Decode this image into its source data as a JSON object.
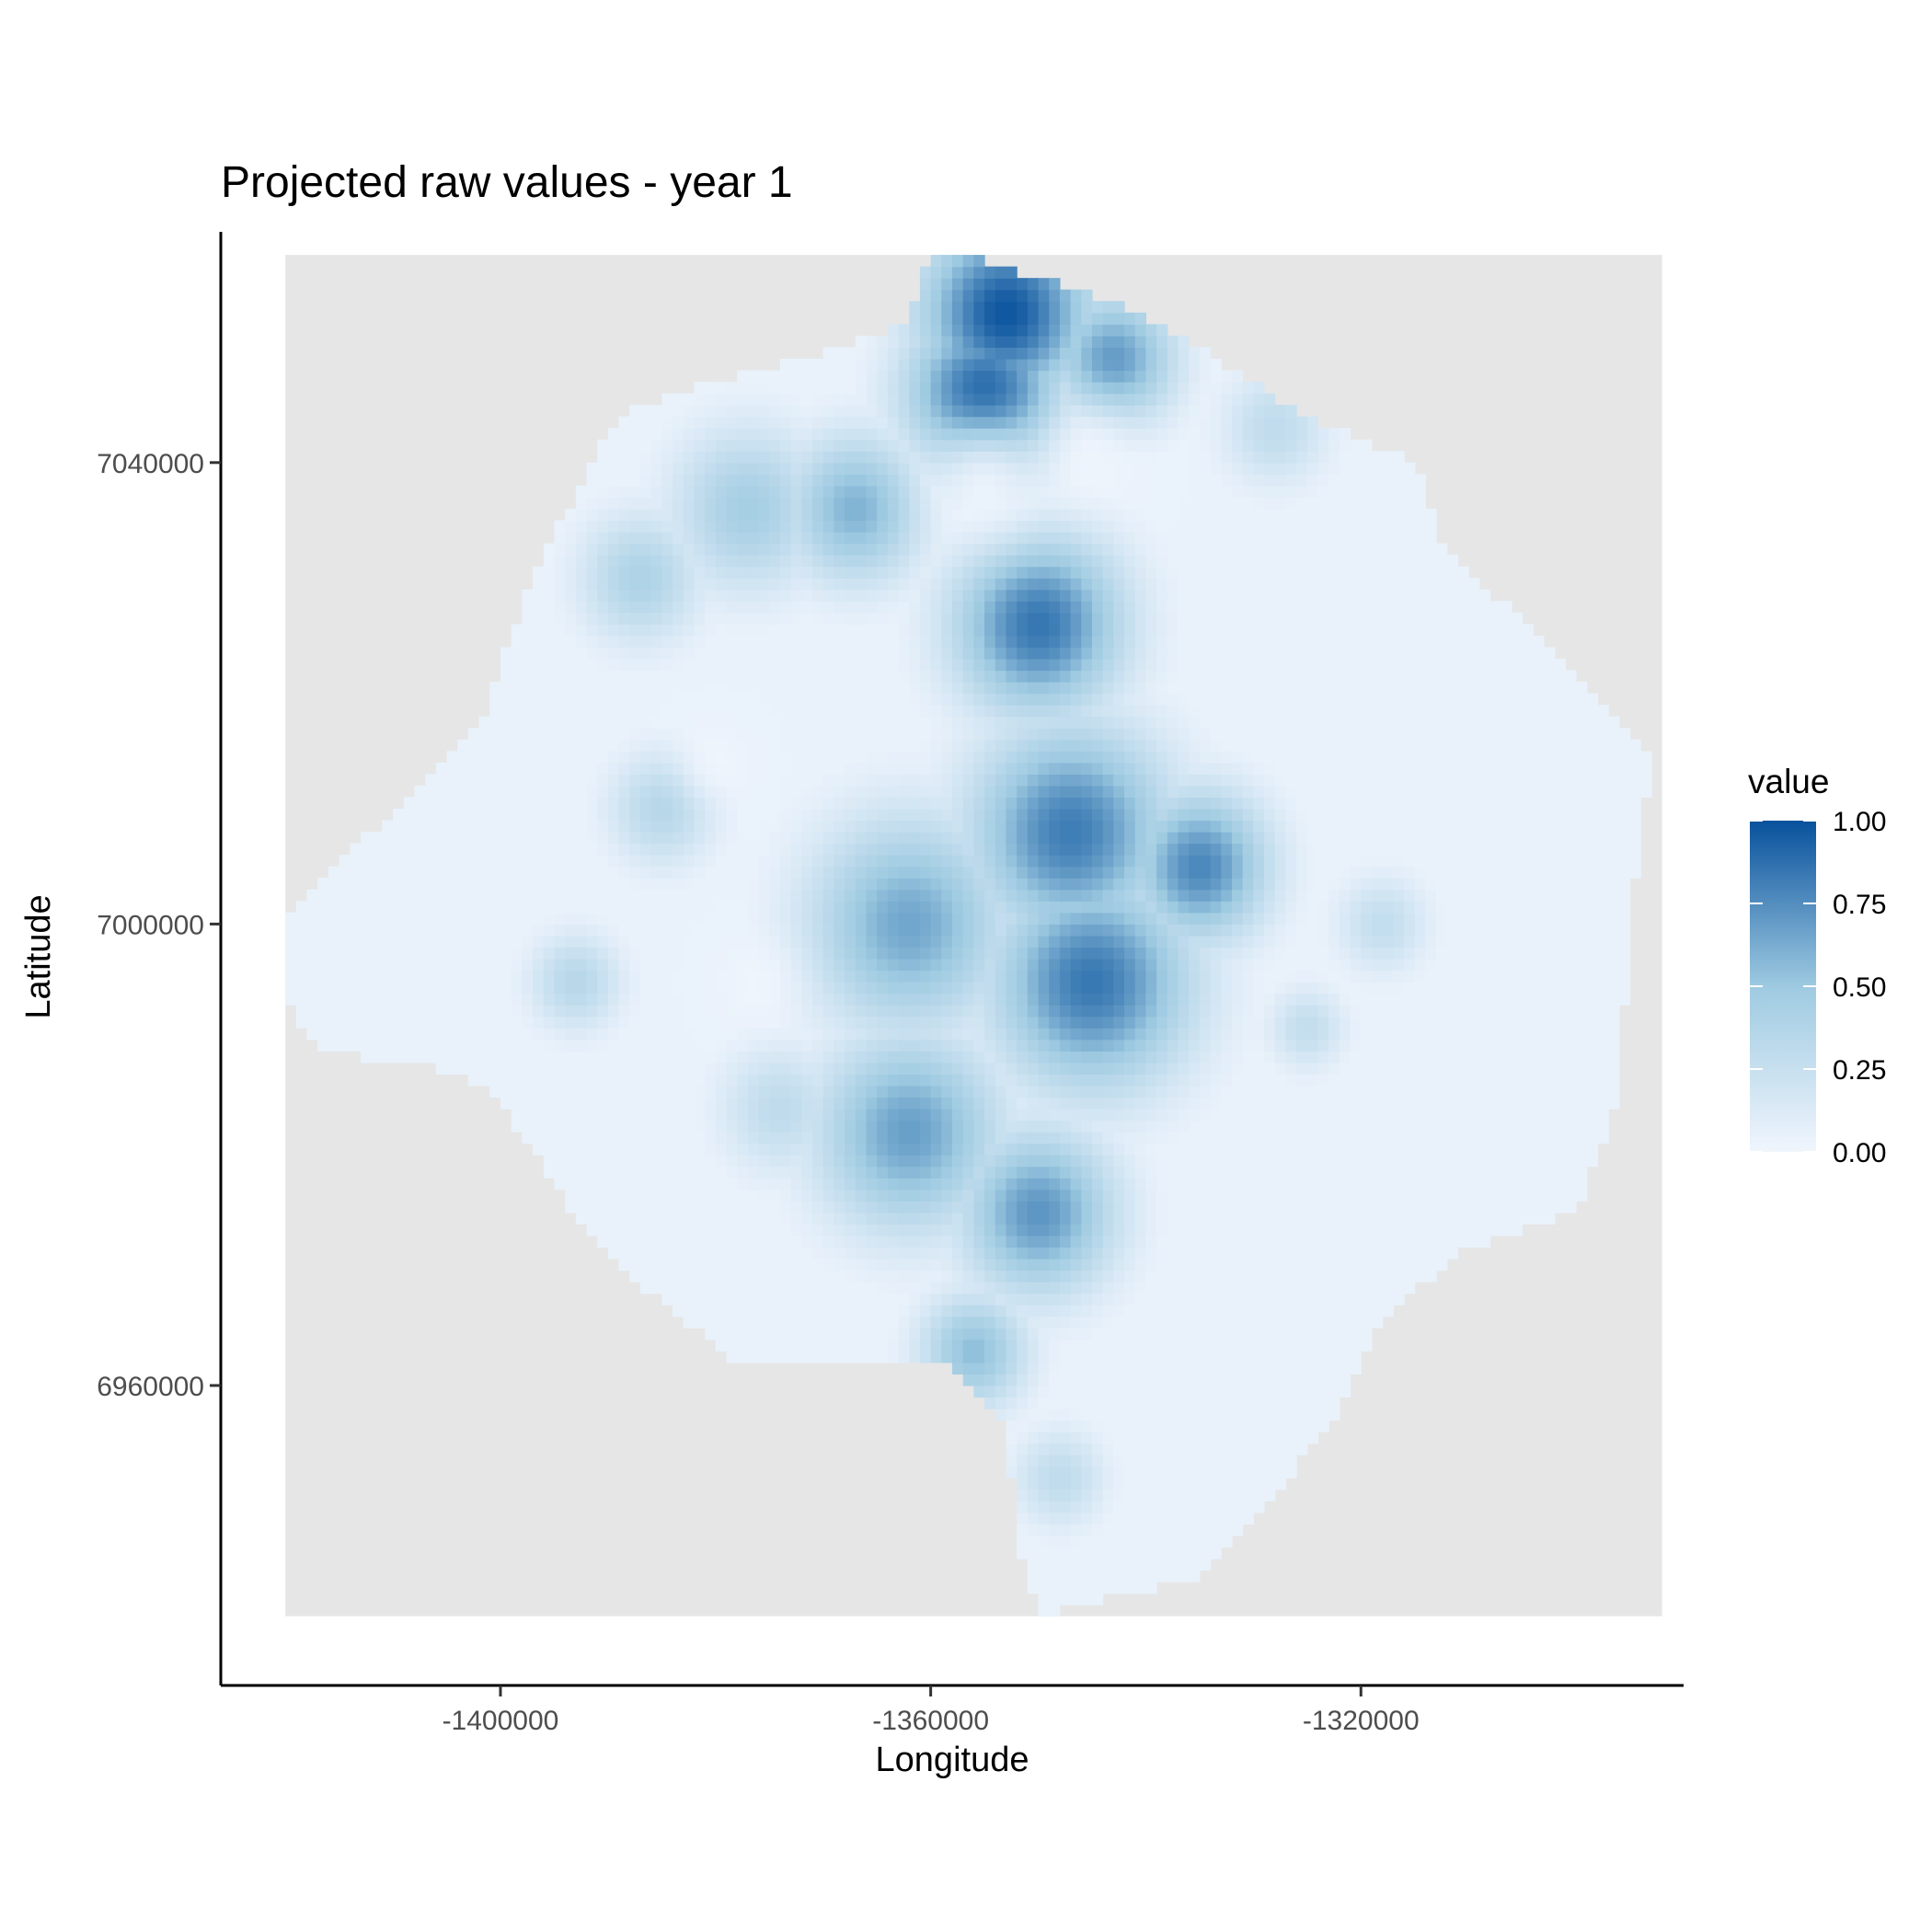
{
  "chart_data": {
    "type": "heatmap",
    "title": "Projected raw values - year 1",
    "xlabel": "Longitude",
    "ylabel": "Latitude",
    "x_ticks": [
      -1400000,
      -1360000,
      -1320000
    ],
    "x_tick_labels": [
      "-1400000",
      "-1360000",
      "-1320000"
    ],
    "y_ticks": [
      7040000,
      7000000,
      6960000
    ],
    "y_tick_labels": [
      "7040000",
      "7000000",
      "6960000"
    ],
    "xlim": [
      -1426000,
      -1290000
    ],
    "ylim": [
      6934000,
      7060000
    ],
    "grid_extent": {
      "x": [
        -1420000,
        -1292000
      ],
      "y": [
        6940000,
        7058000
      ]
    },
    "background_cell_color": "#e6e6e6",
    "colorscale": {
      "low": "#f0f5fd",
      "mid": "#9ecae1",
      "high": "#08519c"
    },
    "legend": {
      "title": "value",
      "position": "right",
      "ticks": [
        1.0,
        0.75,
        0.5,
        0.25,
        0.0
      ],
      "tick_labels": [
        "1.00",
        "0.75",
        "0.50",
        "0.25",
        "0.00"
      ]
    },
    "region_outline": [
      [
        -1420000,
        7000000
      ],
      [
        -1412000,
        7008000
      ],
      [
        -1402000,
        7017000
      ],
      [
        -1397000,
        7030000
      ],
      [
        -1391000,
        7041000
      ],
      [
        -1388000,
        7044500
      ],
      [
        -1380000,
        7047000
      ],
      [
        -1372000,
        7049000
      ],
      [
        -1362000,
        7052000
      ],
      [
        -1360000,
        7058000
      ],
      [
        -1356000,
        7058000
      ],
      [
        -1350000,
        7056000
      ],
      [
        -1343000,
        7054000
      ],
      [
        -1337000,
        7051000
      ],
      [
        -1331000,
        7047500
      ],
      [
        -1325000,
        7044000
      ],
      [
        -1315000,
        7040000
      ],
      [
        -1312000,
        7032000
      ],
      [
        -1302000,
        7024000
      ],
      [
        -1293000,
        7014000
      ],
      [
        -1295000,
        7000000
      ],
      [
        -1296000,
        6985000
      ],
      [
        -1300000,
        6975000
      ],
      [
        -1310000,
        6972000
      ],
      [
        -1318000,
        6966000
      ],
      [
        -1322000,
        6958000
      ],
      [
        -1330000,
        6948000
      ],
      [
        -1336000,
        6943000
      ],
      [
        -1346000,
        6941000
      ],
      [
        -1350000,
        6940000
      ],
      [
        -1352000,
        6947000
      ],
      [
        -1353000,
        6957000
      ],
      [
        -1358000,
        6962000
      ],
      [
        -1368000,
        6962000
      ],
      [
        -1378000,
        6962000
      ],
      [
        -1386000,
        6968000
      ],
      [
        -1394000,
        6976000
      ],
      [
        -1401000,
        6986000
      ],
      [
        -1408000,
        6988000
      ],
      [
        -1417000,
        6989000
      ],
      [
        -1420000,
        6994000
      ]
    ],
    "hotspots": [
      {
        "x": -1353000,
        "y": 7053000,
        "value": 0.98,
        "r": 5500
      },
      {
        "x": -1355000,
        "y": 7046000,
        "value": 0.92,
        "r": 5000
      },
      {
        "x": -1343000,
        "y": 7049000,
        "value": 0.7,
        "r": 4000
      },
      {
        "x": -1350000,
        "y": 7026000,
        "value": 0.85,
        "r": 5500
      },
      {
        "x": -1347000,
        "y": 7008000,
        "value": 0.82,
        "r": 6500
      },
      {
        "x": -1345000,
        "y": 6995000,
        "value": 0.84,
        "r": 6500
      },
      {
        "x": -1335000,
        "y": 7005000,
        "value": 0.78,
        "r": 4500
      },
      {
        "x": -1362000,
        "y": 7000000,
        "value": 0.65,
        "r": 6500
      },
      {
        "x": -1362000,
        "y": 6982000,
        "value": 0.68,
        "r": 6000
      },
      {
        "x": -1350000,
        "y": 6975000,
        "value": 0.72,
        "r": 5000
      },
      {
        "x": -1356000,
        "y": 6963000,
        "value": 0.55,
        "r": 3500
      },
      {
        "x": -1367000,
        "y": 7036000,
        "value": 0.6,
        "r": 4500
      },
      {
        "x": -1377000,
        "y": 7036000,
        "value": 0.45,
        "r": 5000
      },
      {
        "x": -1387000,
        "y": 7030000,
        "value": 0.4,
        "r": 4000
      },
      {
        "x": -1385000,
        "y": 7010000,
        "value": 0.35,
        "r": 3500
      },
      {
        "x": -1393000,
        "y": 6995000,
        "value": 0.35,
        "r": 3000
      },
      {
        "x": -1374000,
        "y": 6984000,
        "value": 0.3,
        "r": 4000
      },
      {
        "x": -1348000,
        "y": 6952000,
        "value": 0.3,
        "r": 3000
      },
      {
        "x": -1318000,
        "y": 7000000,
        "value": 0.28,
        "r": 3000
      },
      {
        "x": -1325000,
        "y": 6991000,
        "value": 0.28,
        "r": 2500
      },
      {
        "x": -1328000,
        "y": 7043000,
        "value": 0.3,
        "r": 3500
      }
    ],
    "low_spots": [
      {
        "x": -1355000,
        "y": 7038000,
        "r": 3500
      },
      {
        "x": -1345000,
        "y": 7040500,
        "r": 3000
      },
      {
        "x": -1376000,
        "y": 6995000,
        "r": 2500
      },
      {
        "x": -1380000,
        "y": 7014000,
        "r": 2200
      }
    ]
  }
}
